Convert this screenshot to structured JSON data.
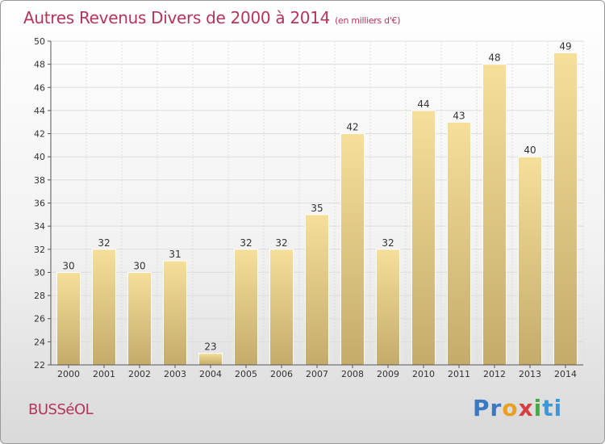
{
  "header": {
    "title": "Autres Revenus Divers de 2000 à 2014",
    "subtitle": "(en milliers d'€)"
  },
  "footer": {
    "commune": "BUSSéOL",
    "brand": [
      "Pr",
      "o",
      "x",
      "i",
      "ti"
    ]
  },
  "colors": {
    "title": "#b5345a",
    "bar_top": "#f5df99",
    "bar_bottom": "#c4ab6a",
    "grid": "#dddddd",
    "axis": "#555555",
    "text": "#333333"
  },
  "chart_data": {
    "type": "bar",
    "title": "Autres Revenus Divers de 2000 à 2014",
    "subtitle": "(en milliers d'€)",
    "xlabel": "",
    "ylabel": "",
    "categories": [
      "2000",
      "2001",
      "2002",
      "2003",
      "2004",
      "2005",
      "2006",
      "2007",
      "2008",
      "2009",
      "2010",
      "2011",
      "2012",
      "2013",
      "2014"
    ],
    "values": [
      30,
      32,
      30,
      31,
      23,
      32,
      32,
      35,
      42,
      32,
      44,
      43,
      48,
      40,
      49
    ],
    "ylim": [
      22,
      50
    ],
    "yticks": [
      22,
      24,
      26,
      28,
      30,
      32,
      34,
      36,
      38,
      40,
      42,
      44,
      46,
      48,
      50
    ],
    "grid": true,
    "legend": "none"
  }
}
